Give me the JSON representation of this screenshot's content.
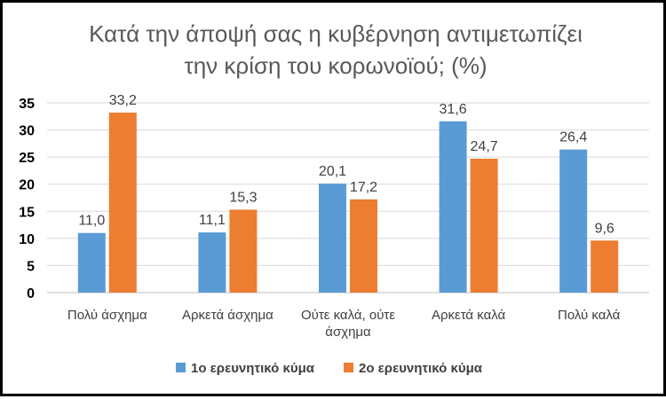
{
  "chart_data": {
    "type": "bar",
    "title": [
      "Κατά την άποψή σας η κυβέρνηση αντιμετωπίζει",
      "την κρίση του κορωνοϊού; (%)"
    ],
    "categories": [
      [
        "Πολύ άσχημα"
      ],
      [
        "Αρκετά άσχημα"
      ],
      [
        "Ούτε καλά, ούτε",
        "άσχημα"
      ],
      [
        "Αρκετά καλά"
      ],
      [
        "Πολύ καλά"
      ]
    ],
    "series": [
      {
        "name": "1ο ερευνητικό κύμα",
        "color": "#5B9BD5",
        "values": [
          11.0,
          11.1,
          20.1,
          31.6,
          26.4
        ]
      },
      {
        "name": "2ο ερευνητικό κύμα",
        "color": "#ED7D31",
        "values": [
          33.2,
          15.3,
          17.2,
          24.7,
          9.6
        ]
      }
    ],
    "ylim": [
      0,
      35
    ],
    "yticks": [
      0,
      5,
      10,
      15,
      20,
      25,
      30,
      35
    ],
    "grid": true,
    "legend": "bottom",
    "value_format": "comma-1-decimal"
  }
}
